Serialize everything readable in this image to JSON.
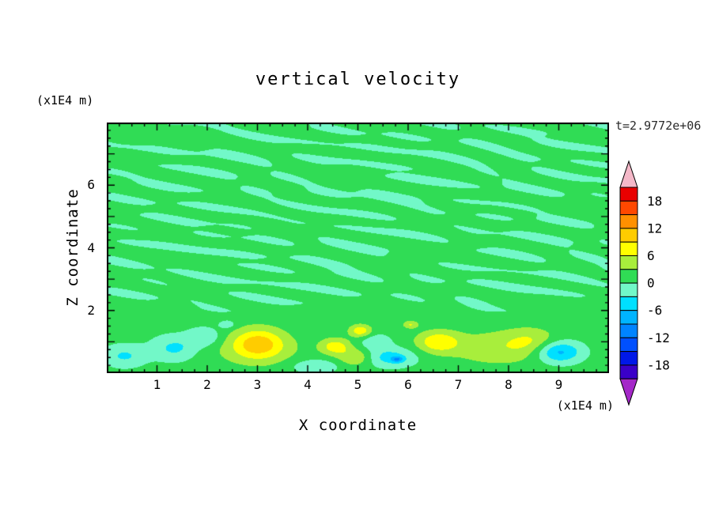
{
  "title": "vertical velocity",
  "timestamp": "t=2.9772e+06",
  "axes": {
    "x": {
      "label": "X coordinate",
      "unit": "(x1E4 m)",
      "range": [
        0,
        10
      ],
      "major_ticks": [
        1,
        2,
        3,
        4,
        5,
        6,
        7,
        8,
        9
      ],
      "minor_step": 0.25
    },
    "z": {
      "label": "Z coordinate",
      "unit": "(x1E4 m)",
      "range": [
        0,
        8
      ],
      "labeled_ticks": [
        2,
        4,
        6
      ],
      "minor_step": 0.25
    }
  },
  "colorbar": {
    "min": -21,
    "max": 21,
    "step": 3,
    "tick_values": [
      18,
      12,
      6,
      0,
      -6,
      -12,
      -18
    ],
    "tick_labels": [
      "18",
      "12",
      "6",
      "0",
      "-6",
      "-12",
      "-18"
    ],
    "colors": [
      "#3a00c8",
      "#0018e8",
      "#0050ff",
      "#0084ff",
      "#00b4ff",
      "#00e0ff",
      "#72f8c8",
      "#30dc55",
      "#a8ee3c",
      "#ffff00",
      "#ffcc00",
      "#ff9000",
      "#ff4800",
      "#e80000"
    ],
    "over_color": "#f4b8c8",
    "under_color": "#a428c8"
  },
  "chart_data": {
    "type": "heatmap",
    "title": "vertical velocity",
    "xlabel": "X coordinate (x1E4 m)",
    "ylabel": "Z coordinate (x1E4 m)",
    "time_annotation": "t=2.9772e+06",
    "x_range": [
      0,
      10
    ],
    "z_range": [
      0,
      8
    ],
    "contour_levels": [
      -21,
      -18,
      -15,
      -12,
      -9,
      -6,
      -3,
      0,
      3,
      6,
      9,
      12,
      15,
      18,
      21
    ],
    "contour_interval": 3,
    "legend_position": "right",
    "field_model": {
      "background": 1.1,
      "turbulence": {
        "z_min": 1.75,
        "fade": 0.55,
        "clamp": [
          -3.6,
          1.7
        ],
        "waves": [
          {
            "a": 1.4,
            "kx": 2.1,
            "kz": 9.7,
            "p": 0.4,
            "m": 1.3,
            "mkx": 0.7,
            "mkz": 1.9
          },
          {
            "a": 1.15,
            "kx": 3.3,
            "kz": 7.3,
            "p": 2.2,
            "m": 0.9,
            "mkx": 1.1,
            "mkz": 0.6
          },
          {
            "a": 1.0,
            "kx": 1.2,
            "kz": 12.4,
            "p": 4.1,
            "m": 1.1,
            "mkx": 0.5,
            "mkz": 1.3
          },
          {
            "a": 0.8,
            "kx": 4.6,
            "kz": 5.9,
            "p": 1.6,
            "m": 0,
            "mkx": 0,
            "mkz": 0
          },
          {
            "a": 0.65,
            "kx": 2.9,
            "kz": 14.8,
            "p": 3.0,
            "m": 0,
            "mkx": 0,
            "mkz": 0
          },
          {
            "a": 0.55,
            "kx": 5.8,
            "kz": 8.6,
            "p": 5.2,
            "m": 0,
            "mkx": 0,
            "mkz": 0
          }
        ]
      },
      "blobs": [
        {
          "x": 3.02,
          "z": 0.95,
          "sx": 0.5,
          "sz": 0.48,
          "a": 8.0
        },
        {
          "x": 2.95,
          "z": 0.75,
          "sx": 0.95,
          "sz": 0.55,
          "a": 2.8
        },
        {
          "x": 4.55,
          "z": 0.85,
          "sx": 0.3,
          "sz": 0.26,
          "a": 6.5
        },
        {
          "x": 5.05,
          "z": 1.35,
          "sx": 0.22,
          "sz": 0.2,
          "a": 7.0
        },
        {
          "x": 4.95,
          "z": 0.5,
          "sx": 0.33,
          "sz": 0.27,
          "a": 5.0
        },
        {
          "x": 6.6,
          "z": 1.0,
          "sx": 0.42,
          "sz": 0.34,
          "a": 7.0
        },
        {
          "x": 6.05,
          "z": 1.55,
          "sx": 0.15,
          "sz": 0.12,
          "a": 5.0
        },
        {
          "x": 7.8,
          "z": 0.8,
          "sx": 1.0,
          "sz": 0.55,
          "a": 4.0
        },
        {
          "x": 8.45,
          "z": 1.05,
          "sx": 0.5,
          "sz": 0.4,
          "a": 3.5
        },
        {
          "x": 0.35,
          "z": 0.55,
          "sx": 0.42,
          "sz": 0.35,
          "a": -4.5
        },
        {
          "x": 1.35,
          "z": 0.8,
          "sx": 0.45,
          "sz": 0.4,
          "a": -4.8
        },
        {
          "x": 1.95,
          "z": 1.15,
          "sx": 0.33,
          "sz": 0.3,
          "a": -4.2
        },
        {
          "x": 2.4,
          "z": 1.55,
          "sx": 0.16,
          "sz": 0.13,
          "a": -3.6
        },
        {
          "x": 4.15,
          "z": 0.22,
          "sx": 0.45,
          "sz": 0.22,
          "a": -4.0
        },
        {
          "x": 5.65,
          "z": 0.5,
          "sx": 0.5,
          "sz": 0.3,
          "a": -5.5
        },
        {
          "x": 5.78,
          "z": 0.44,
          "sx": 0.12,
          "sz": 0.09,
          "a": -6.5
        },
        {
          "x": 9.0,
          "z": 0.68,
          "sx": 0.45,
          "sz": 0.35,
          "a": -8.5
        },
        {
          "x": 5.35,
          "z": 1.0,
          "sx": 0.3,
          "sz": 0.25,
          "a": -3.5
        }
      ]
    }
  }
}
